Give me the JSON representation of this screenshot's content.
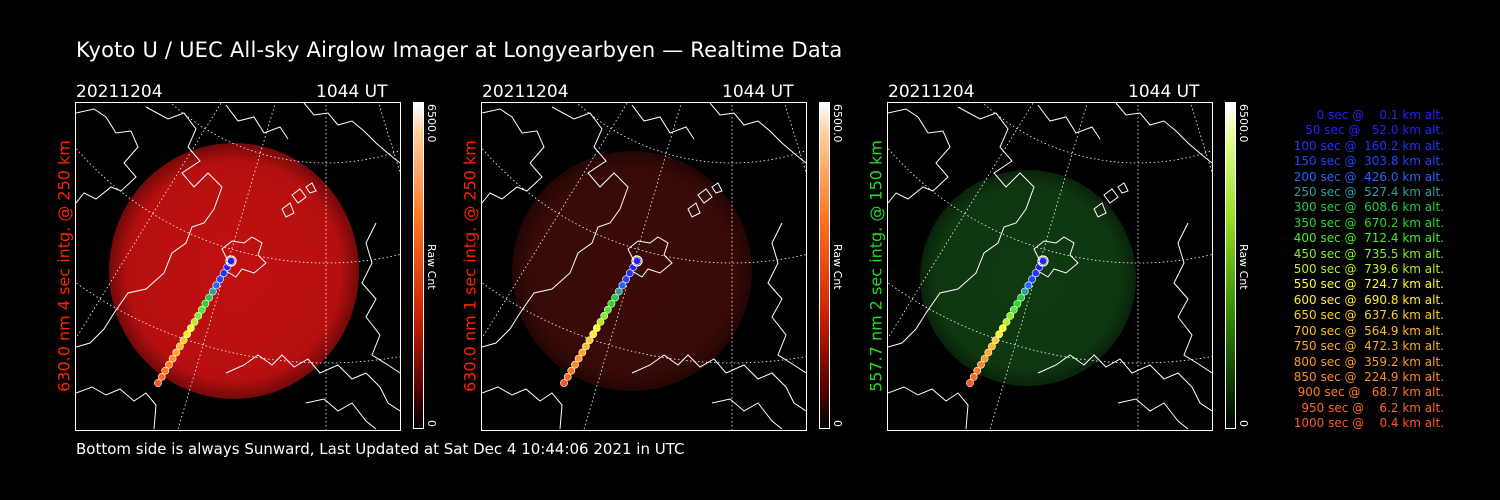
{
  "title": "Kyoto U / UEC All-sky Airglow Imager at Longyearbyen — Realtime Data",
  "footer": "Bottom side is always Sunward, Last Updated at Sat Dec  4 10:44:06 2021 in UTC",
  "panels": [
    {
      "date": "20211204",
      "time": "1044 UT",
      "label": "630.0 nm 4 sec intg. @ 250 km",
      "label_color": "#ff2200",
      "cbar_max": "6500.0",
      "cbar_unit": "Raw Cnt",
      "cbar_min": "0",
      "glow": "#c01010",
      "brightness": 1.0
    },
    {
      "date": "20211204",
      "time": "1044 UT",
      "label": "630.0 nm 1 sec intg. @ 250 km",
      "label_color": "#ff2200",
      "cbar_max": "6500.0",
      "cbar_unit": "Raw Cnt",
      "cbar_min": "0",
      "glow": "#3a0a08",
      "brightness": 0.35
    },
    {
      "date": "20211204",
      "time": "1044 UT",
      "label": "557.7 nm 2 sec intg. @ 150 km",
      "label_color": "#22dd22",
      "cbar_max": "6500.0",
      "cbar_unit": "Raw Cnt",
      "cbar_min": "0",
      "glow": "#0f3a10",
      "brightness": 0.4
    }
  ],
  "legend": [
    {
      "text": "   0 sec @    0.1 km alt.",
      "color": "#2222ff"
    },
    {
      "text": "  50 sec @   52.0 km alt.",
      "color": "#2222ff"
    },
    {
      "text": " 100 sec @  160.2 km alt.",
      "color": "#2233ff"
    },
    {
      "text": " 150 sec @  303.8 km alt.",
      "color": "#2244ff"
    },
    {
      "text": " 200 sec @  426.0 km alt.",
      "color": "#2266ff"
    },
    {
      "text": " 250 sec @  527.4 km alt.",
      "color": "#2aa0a0"
    },
    {
      "text": " 300 sec @  608.6 km alt.",
      "color": "#22cc44"
    },
    {
      "text": " 350 sec @  670.2 km alt.",
      "color": "#22dd22"
    },
    {
      "text": " 400 sec @  712.4 km alt.",
      "color": "#44ee22"
    },
    {
      "text": " 450 sec @  735.5 km alt.",
      "color": "#88ee22"
    },
    {
      "text": " 500 sec @  739.6 km alt.",
      "color": "#bbee22"
    },
    {
      "text": " 550 sec @  724.7 km alt.",
      "color": "#ffff22"
    },
    {
      "text": " 600 sec @  690.8 km alt.",
      "color": "#ffee22"
    },
    {
      "text": " 650 sec @  637.6 km alt.",
      "color": "#ffcc22"
    },
    {
      "text": " 700 sec @  564.9 km alt.",
      "color": "#ffbb22"
    },
    {
      "text": " 750 sec @  472.3 km alt.",
      "color": "#ffaa22"
    },
    {
      "text": " 800 sec @  359.2 km alt.",
      "color": "#ff9922"
    },
    {
      "text": " 850 sec @  224.9 km alt.",
      "color": "#ff8822"
    },
    {
      "text": " 900 sec @   68.7 km alt.",
      "color": "#ff7722"
    },
    {
      "text": " 950 sec @    6.2 km alt.",
      "color": "#ff6622"
    },
    {
      "text": "1000 sec @    0.4 km alt.",
      "color": "#ff5522"
    }
  ]
}
